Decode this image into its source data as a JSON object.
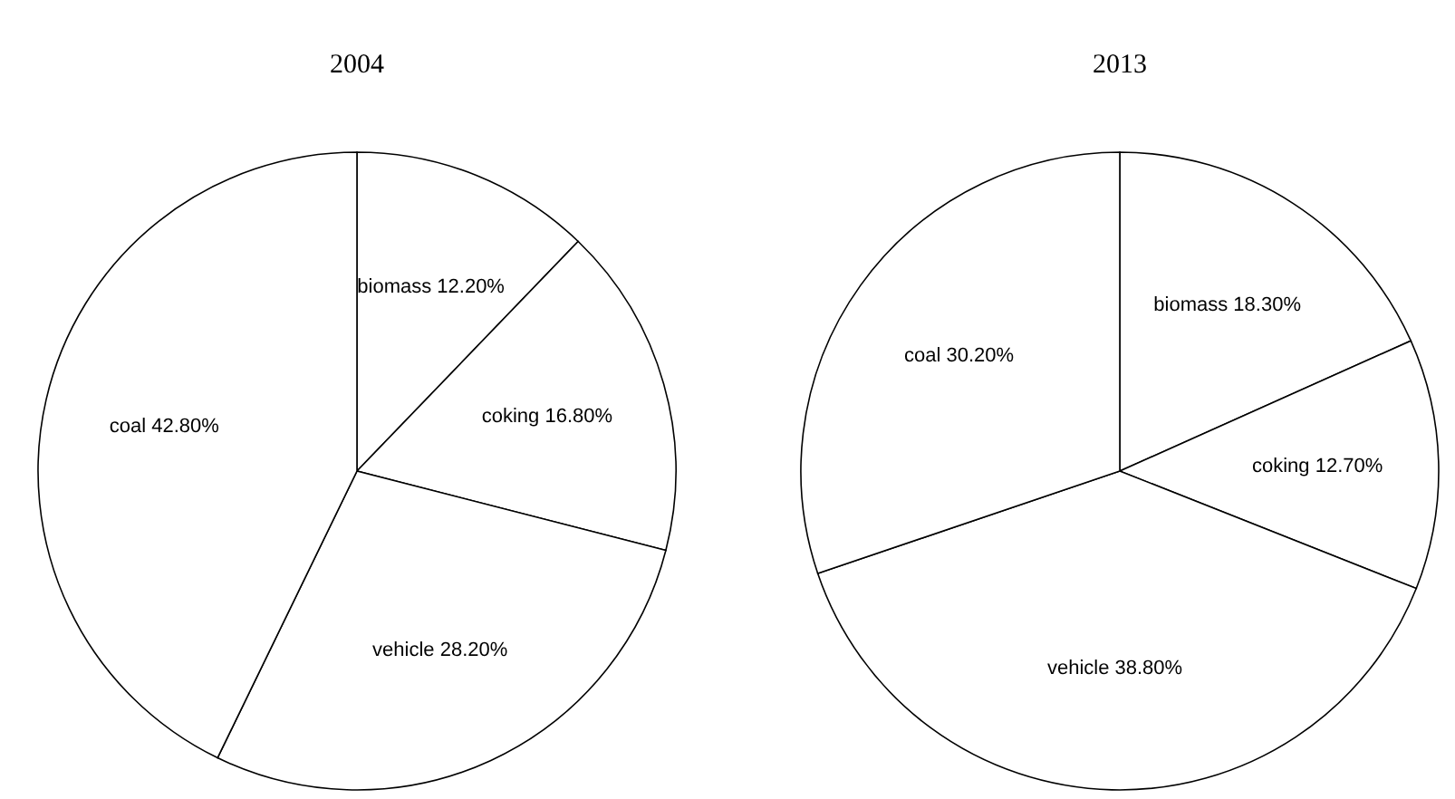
{
  "chart_data": [
    {
      "type": "pie",
      "title": "2004",
      "categories": [
        "biomass",
        "coking",
        "vehicle",
        "coal"
      ],
      "values": [
        12.2,
        16.8,
        28.2,
        42.8
      ],
      "value_labels": [
        "12.20%",
        "16.80%",
        "28.20%",
        "42.80%"
      ],
      "colors": [
        "#ffffff",
        "#ffffff",
        "#ffffff",
        "#ffffff"
      ]
    },
    {
      "type": "pie",
      "title": "2013",
      "categories": [
        "biomass",
        "coking",
        "vehicle",
        "coal"
      ],
      "values": [
        18.3,
        12.7,
        38.8,
        30.2
      ],
      "value_labels": [
        "18.30%",
        "12.70%",
        "38.80%",
        "30.20%"
      ],
      "colors": [
        "#ffffff",
        "#ffffff",
        "#ffffff",
        "#ffffff"
      ]
    }
  ]
}
